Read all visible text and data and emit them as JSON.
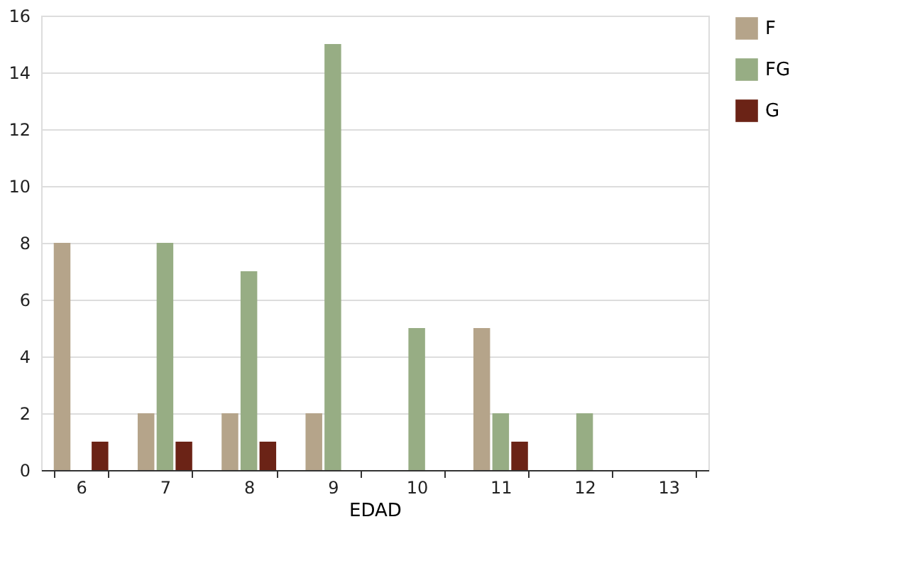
{
  "chart_data": {
    "type": "bar",
    "xlabel": "EDAD",
    "categories": [
      "6",
      "7",
      "8",
      "9",
      "10",
      "11",
      "12",
      "13"
    ],
    "series": [
      {
        "name": "F",
        "color": "#b5a48a",
        "values": [
          8,
          2,
          2,
          2,
          0,
          5,
          0,
          0
        ]
      },
      {
        "name": "FG",
        "color": "#97ad84",
        "values": [
          0,
          8,
          7,
          15,
          5,
          2,
          2,
          0
        ]
      },
      {
        "name": "G",
        "color": "#6b2316",
        "values": [
          1,
          1,
          1,
          0,
          0,
          1,
          0,
          0
        ]
      }
    ],
    "ylim": [
      0,
      16
    ],
    "yticks": [
      0,
      2,
      4,
      6,
      8,
      10,
      12,
      14,
      16
    ],
    "grid": "y",
    "legend": "right"
  }
}
